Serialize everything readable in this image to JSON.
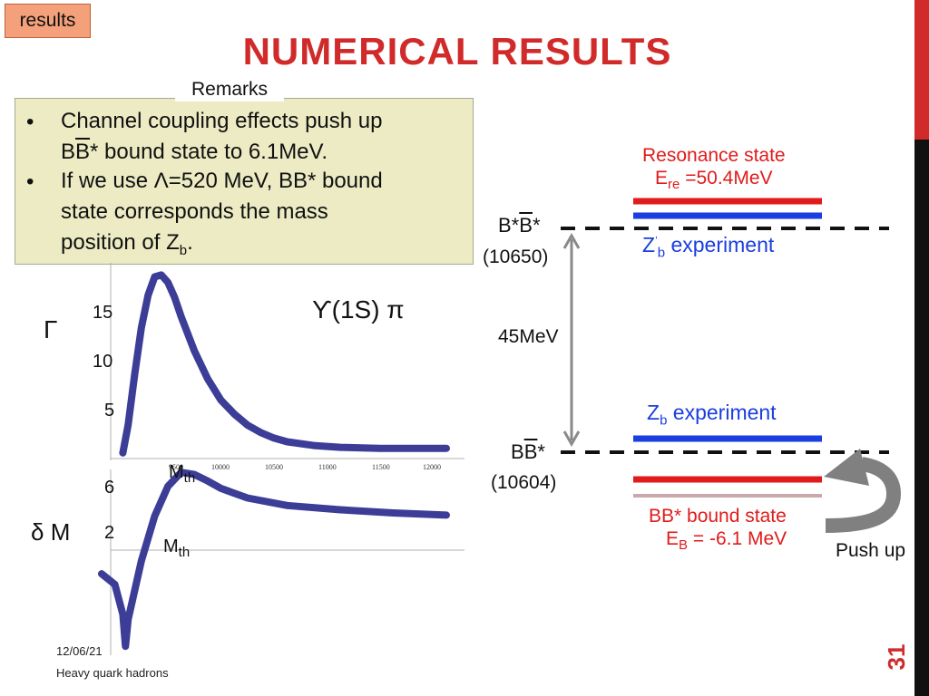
{
  "tab": {
    "label": "results"
  },
  "title": "NUMERICAL RESULTS",
  "remarks": {
    "label": "Remarks",
    "bullet_char": "•",
    "b1_line1": "Channel coupling effects push up",
    "b1_line2_pre": "B",
    "b1_line2_bar": "B",
    "b1_line2_post": "* bound state to 6.1MeV.",
    "b2_line1": "If we use Λ=520 MeV, BB* bound",
    "b2_line2": "state corresponds the mass",
    "b2_line3_pre": "position of Z",
    "b2_line3_sub": "b",
    "b2_line3_post": "."
  },
  "plot": {
    "gamma_label": "Γ",
    "delta_label": "δ M",
    "channel_label": "ϒ(1S) π",
    "mth_upper": "M",
    "mth_lower": "M",
    "mth_sub": "th",
    "y_upper_ticks": [
      "15",
      "10",
      "5"
    ],
    "y_lower_ticks": [
      "6",
      "2"
    ],
    "x_ticks": [
      "9500",
      "10000",
      "10500",
      "11000",
      "11500",
      "12000"
    ],
    "colors": {
      "curve": "#3b3d96"
    }
  },
  "chart_data": {
    "type": "line",
    "title": "ϒ(1S) π",
    "panels": [
      {
        "ylabel": "Γ",
        "x": [
          9560,
          9600,
          9650,
          9700,
          9750,
          9800,
          9850,
          9900,
          9950,
          10000,
          10100,
          10200,
          10300,
          10400,
          10500,
          10600,
          10700,
          10800,
          11000,
          11200,
          11500,
          12000
        ],
        "values": [
          0,
          3.0,
          8.5,
          13.5,
          17.0,
          19.0,
          19.2,
          18.4,
          16.8,
          14.7,
          11.0,
          8.0,
          5.7,
          4.2,
          3.0,
          2.2,
          1.6,
          1.2,
          0.8,
          0.6,
          0.5,
          0.5
        ],
        "ylim": [
          -1,
          21
        ]
      },
      {
        "ylabel": "δ M",
        "x": [
          9400,
          9500,
          9560,
          9580,
          9600,
          9700,
          9800,
          9900,
          10000,
          10100,
          10200,
          10300,
          10500,
          10800,
          11200,
          11600,
          12000
        ],
        "values": [
          -2.2,
          -3.2,
          -6.0,
          -9.0,
          -6.5,
          -1.0,
          3.2,
          6.0,
          7.3,
          7.1,
          6.5,
          5.8,
          4.9,
          4.2,
          3.8,
          3.5,
          3.3
        ],
        "ylim": [
          -10,
          8
        ]
      }
    ],
    "xlim": [
      9400,
      12000
    ]
  },
  "levels": {
    "resonance_title": "Resonance state",
    "resonance_e_pre": "E",
    "resonance_e_sub": "re",
    "resonance_e_post": " =50.4MeV",
    "bstar_label_pre": "B*",
    "bstar_label_bar": "B",
    "bstar_label_post": "*",
    "bstar_mass": "(10650)",
    "zb_prime_pre": "Z",
    "zb_prime_mark": "’",
    "zb_prime_sub": "b",
    "zb_prime_post": " experiment",
    "gap_label": "45MeV",
    "zb_pre": "Z",
    "zb_sub": "b",
    "zb_post": " experiment",
    "bb_label_pre": "B",
    "bb_label_bar": "B",
    "bb_label_post": "*",
    "bb_mass": "(10604)",
    "bound_title": "BB* bound state",
    "bound_e_pre": "E",
    "bound_e_sub": "B",
    "bound_e_post": " = -6.1 MeV",
    "push_up": "Push up",
    "colors": {
      "red": "#e11b1b",
      "blue": "#1a3ee0",
      "arrow": "#8a8a8a"
    }
  },
  "footer": {
    "date": "12/06/21",
    "course": "Heavy quark hadrons",
    "page": "31"
  }
}
